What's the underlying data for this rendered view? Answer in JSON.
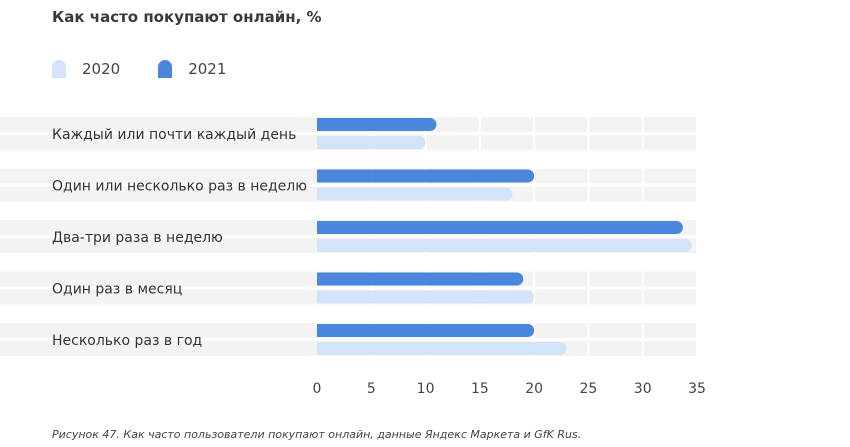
{
  "chart_data": {
    "type": "bar",
    "orientation": "horizontal",
    "title": "Как часто покупают онлайн, %",
    "categories": [
      "Каждый или почти каждый день",
      "Один или несколько раз в неделю",
      "Два-три раза в неделю",
      "Один раз в месяц",
      "Несколько раз в год"
    ],
    "series": [
      {
        "name": "2021",
        "color": "#4a86db",
        "values": [
          11,
          20,
          33.7,
          19,
          20
        ]
      },
      {
        "name": "2020",
        "color": "#d2e3fa",
        "values": [
          10,
          18,
          34.5,
          20,
          23
        ]
      }
    ],
    "xlim": [
      0,
      35
    ],
    "xticks": [
      "0",
      "5",
      "10",
      "15",
      "20",
      "25",
      "30",
      "35"
    ],
    "grid": true,
    "legend": "top-left"
  },
  "caption": "Рисунок 47. Как часто пользователи покупают онлайн, данные Яндекс Маркета и GfK Rus."
}
